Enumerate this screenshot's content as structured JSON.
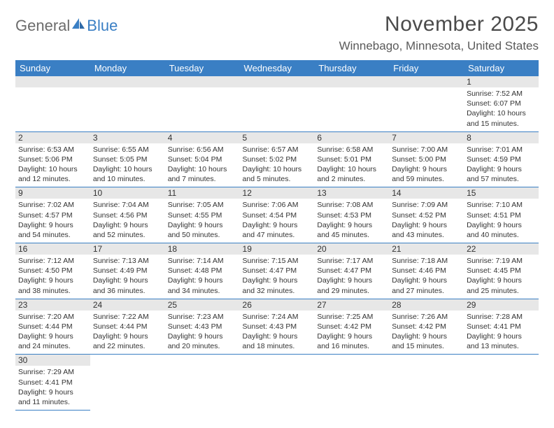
{
  "logo": {
    "text1": "General",
    "text2": "Blue"
  },
  "title": "November 2025",
  "location": "Winnebago, Minnesota, United States",
  "colors": {
    "header_bg": "#3a7fc4",
    "header_fg": "#ffffff",
    "daynum_bg": "#e7e7e7",
    "rule": "#3a7fc4"
  },
  "weekdays": [
    "Sunday",
    "Monday",
    "Tuesday",
    "Wednesday",
    "Thursday",
    "Friday",
    "Saturday"
  ],
  "weeks": [
    [
      {
        "n": "",
        "lines": []
      },
      {
        "n": "",
        "lines": []
      },
      {
        "n": "",
        "lines": []
      },
      {
        "n": "",
        "lines": []
      },
      {
        "n": "",
        "lines": []
      },
      {
        "n": "",
        "lines": []
      },
      {
        "n": "1",
        "lines": [
          "Sunrise: 7:52 AM",
          "Sunset: 6:07 PM",
          "Daylight: 10 hours",
          "and 15 minutes."
        ]
      }
    ],
    [
      {
        "n": "2",
        "lines": [
          "Sunrise: 6:53 AM",
          "Sunset: 5:06 PM",
          "Daylight: 10 hours",
          "and 12 minutes."
        ]
      },
      {
        "n": "3",
        "lines": [
          "Sunrise: 6:55 AM",
          "Sunset: 5:05 PM",
          "Daylight: 10 hours",
          "and 10 minutes."
        ]
      },
      {
        "n": "4",
        "lines": [
          "Sunrise: 6:56 AM",
          "Sunset: 5:04 PM",
          "Daylight: 10 hours",
          "and 7 minutes."
        ]
      },
      {
        "n": "5",
        "lines": [
          "Sunrise: 6:57 AM",
          "Sunset: 5:02 PM",
          "Daylight: 10 hours",
          "and 5 minutes."
        ]
      },
      {
        "n": "6",
        "lines": [
          "Sunrise: 6:58 AM",
          "Sunset: 5:01 PM",
          "Daylight: 10 hours",
          "and 2 minutes."
        ]
      },
      {
        "n": "7",
        "lines": [
          "Sunrise: 7:00 AM",
          "Sunset: 5:00 PM",
          "Daylight: 9 hours",
          "and 59 minutes."
        ]
      },
      {
        "n": "8",
        "lines": [
          "Sunrise: 7:01 AM",
          "Sunset: 4:59 PM",
          "Daylight: 9 hours",
          "and 57 minutes."
        ]
      }
    ],
    [
      {
        "n": "9",
        "lines": [
          "Sunrise: 7:02 AM",
          "Sunset: 4:57 PM",
          "Daylight: 9 hours",
          "and 54 minutes."
        ]
      },
      {
        "n": "10",
        "lines": [
          "Sunrise: 7:04 AM",
          "Sunset: 4:56 PM",
          "Daylight: 9 hours",
          "and 52 minutes."
        ]
      },
      {
        "n": "11",
        "lines": [
          "Sunrise: 7:05 AM",
          "Sunset: 4:55 PM",
          "Daylight: 9 hours",
          "and 50 minutes."
        ]
      },
      {
        "n": "12",
        "lines": [
          "Sunrise: 7:06 AM",
          "Sunset: 4:54 PM",
          "Daylight: 9 hours",
          "and 47 minutes."
        ]
      },
      {
        "n": "13",
        "lines": [
          "Sunrise: 7:08 AM",
          "Sunset: 4:53 PM",
          "Daylight: 9 hours",
          "and 45 minutes."
        ]
      },
      {
        "n": "14",
        "lines": [
          "Sunrise: 7:09 AM",
          "Sunset: 4:52 PM",
          "Daylight: 9 hours",
          "and 43 minutes."
        ]
      },
      {
        "n": "15",
        "lines": [
          "Sunrise: 7:10 AM",
          "Sunset: 4:51 PM",
          "Daylight: 9 hours",
          "and 40 minutes."
        ]
      }
    ],
    [
      {
        "n": "16",
        "lines": [
          "Sunrise: 7:12 AM",
          "Sunset: 4:50 PM",
          "Daylight: 9 hours",
          "and 38 minutes."
        ]
      },
      {
        "n": "17",
        "lines": [
          "Sunrise: 7:13 AM",
          "Sunset: 4:49 PM",
          "Daylight: 9 hours",
          "and 36 minutes."
        ]
      },
      {
        "n": "18",
        "lines": [
          "Sunrise: 7:14 AM",
          "Sunset: 4:48 PM",
          "Daylight: 9 hours",
          "and 34 minutes."
        ]
      },
      {
        "n": "19",
        "lines": [
          "Sunrise: 7:15 AM",
          "Sunset: 4:47 PM",
          "Daylight: 9 hours",
          "and 32 minutes."
        ]
      },
      {
        "n": "20",
        "lines": [
          "Sunrise: 7:17 AM",
          "Sunset: 4:47 PM",
          "Daylight: 9 hours",
          "and 29 minutes."
        ]
      },
      {
        "n": "21",
        "lines": [
          "Sunrise: 7:18 AM",
          "Sunset: 4:46 PM",
          "Daylight: 9 hours",
          "and 27 minutes."
        ]
      },
      {
        "n": "22",
        "lines": [
          "Sunrise: 7:19 AM",
          "Sunset: 4:45 PM",
          "Daylight: 9 hours",
          "and 25 minutes."
        ]
      }
    ],
    [
      {
        "n": "23",
        "lines": [
          "Sunrise: 7:20 AM",
          "Sunset: 4:44 PM",
          "Daylight: 9 hours",
          "and 24 minutes."
        ]
      },
      {
        "n": "24",
        "lines": [
          "Sunrise: 7:22 AM",
          "Sunset: 4:44 PM",
          "Daylight: 9 hours",
          "and 22 minutes."
        ]
      },
      {
        "n": "25",
        "lines": [
          "Sunrise: 7:23 AM",
          "Sunset: 4:43 PM",
          "Daylight: 9 hours",
          "and 20 minutes."
        ]
      },
      {
        "n": "26",
        "lines": [
          "Sunrise: 7:24 AM",
          "Sunset: 4:43 PM",
          "Daylight: 9 hours",
          "and 18 minutes."
        ]
      },
      {
        "n": "27",
        "lines": [
          "Sunrise: 7:25 AM",
          "Sunset: 4:42 PM",
          "Daylight: 9 hours",
          "and 16 minutes."
        ]
      },
      {
        "n": "28",
        "lines": [
          "Sunrise: 7:26 AM",
          "Sunset: 4:42 PM",
          "Daylight: 9 hours",
          "and 15 minutes."
        ]
      },
      {
        "n": "29",
        "lines": [
          "Sunrise: 7:28 AM",
          "Sunset: 4:41 PM",
          "Daylight: 9 hours",
          "and 13 minutes."
        ]
      }
    ],
    [
      {
        "n": "30",
        "lines": [
          "Sunrise: 7:29 AM",
          "Sunset: 4:41 PM",
          "Daylight: 9 hours",
          "and 11 minutes."
        ]
      },
      {
        "n": "",
        "lines": []
      },
      {
        "n": "",
        "lines": []
      },
      {
        "n": "",
        "lines": []
      },
      {
        "n": "",
        "lines": []
      },
      {
        "n": "",
        "lines": []
      },
      {
        "n": "",
        "lines": []
      }
    ]
  ]
}
